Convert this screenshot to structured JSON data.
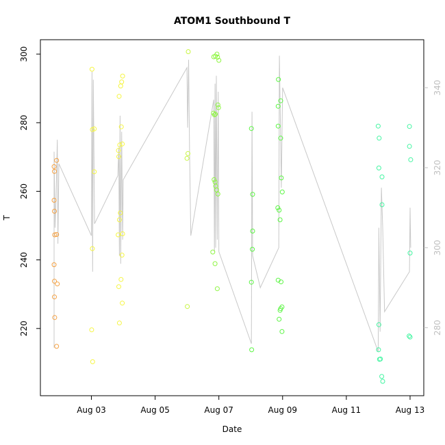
{
  "chart_data": {
    "type": "scatter",
    "title": "ATOM1 Southbound T",
    "xlabel": "Date",
    "ylabel": "T",
    "x_ticks": [
      "Aug 03",
      "Aug 05",
      "Aug 07",
      "Aug 09",
      "Aug 11",
      "Aug 13"
    ],
    "x_tick_days": [
      3,
      5,
      7,
      9,
      11,
      13
    ],
    "xlim_days": [
      1.4,
      13.43
    ],
    "ylim": [
      200.4,
      304.2
    ],
    "y_ticks": [
      220,
      240,
      260,
      280,
      300
    ],
    "y2lim": [
      263,
      352
    ],
    "y2_ticks": [
      280,
      300,
      320,
      340
    ],
    "grid": false,
    "legend": "none",
    "line_color": "#c8c8c8",
    "right_axis_color": "#bfbfbf",
    "points": [
      {
        "x": 1.83,
        "y": 267.2,
        "c": "#f5a142"
      },
      {
        "x": 1.84,
        "y": 265.8,
        "c": "#f5a142"
      },
      {
        "x": 1.83,
        "y": 257.4,
        "c": "#f5a142"
      },
      {
        "x": 1.84,
        "y": 254.2,
        "c": "#f5a142"
      },
      {
        "x": 1.85,
        "y": 247.3,
        "c": "#f5a142"
      },
      {
        "x": 1.83,
        "y": 238.6,
        "c": "#f5a142"
      },
      {
        "x": 1.84,
        "y": 233.8,
        "c": "#f5a142"
      },
      {
        "x": 1.84,
        "y": 229.2,
        "c": "#f5a142"
      },
      {
        "x": 1.85,
        "y": 223.2,
        "c": "#f5a142"
      },
      {
        "x": 1.91,
        "y": 269.0,
        "c": "#f5a142"
      },
      {
        "x": 1.91,
        "y": 247.4,
        "c": "#f5a142"
      },
      {
        "x": 1.93,
        "y": 233.0,
        "c": "#f5a142"
      },
      {
        "x": 1.91,
        "y": 214.8,
        "c": "#f5a142"
      },
      {
        "x": 3.02,
        "y": 295.6,
        "c": "#f5f542"
      },
      {
        "x": 3.03,
        "y": 278.0,
        "c": "#f5f542"
      },
      {
        "x": 3.09,
        "y": 278.2,
        "c": "#f5f542"
      },
      {
        "x": 3.09,
        "y": 265.7,
        "c": "#f5f542"
      },
      {
        "x": 3.03,
        "y": 243.3,
        "c": "#f5f542"
      },
      {
        "x": 3.01,
        "y": 219.6,
        "c": "#f5f542"
      },
      {
        "x": 3.04,
        "y": 210.3,
        "c": "#f5f542"
      },
      {
        "x": 3.87,
        "y": 287.7,
        "c": "#f5f542"
      },
      {
        "x": 3.92,
        "y": 290.7,
        "c": "#f5f542"
      },
      {
        "x": 3.95,
        "y": 291.9,
        "c": "#f5f542"
      },
      {
        "x": 3.98,
        "y": 293.6,
        "c": "#f5f542"
      },
      {
        "x": 3.94,
        "y": 278.8,
        "c": "#f5f542"
      },
      {
        "x": 3.85,
        "y": 271.9,
        "c": "#f5f542"
      },
      {
        "x": 3.89,
        "y": 273.5,
        "c": "#f5f542"
      },
      {
        "x": 3.97,
        "y": 273.8,
        "c": "#f5f542"
      },
      {
        "x": 3.86,
        "y": 270.1,
        "c": "#f5f542"
      },
      {
        "x": 3.88,
        "y": 251.7,
        "c": "#f5f542"
      },
      {
        "x": 3.91,
        "y": 253.7,
        "c": "#f5f542"
      },
      {
        "x": 3.84,
        "y": 247.3,
        "c": "#f5f542"
      },
      {
        "x": 3.98,
        "y": 247.6,
        "c": "#f5f542"
      },
      {
        "x": 3.96,
        "y": 241.4,
        "c": "#f5f542"
      },
      {
        "x": 3.93,
        "y": 234.3,
        "c": "#f5f542"
      },
      {
        "x": 3.86,
        "y": 232.2,
        "c": "#f5f542"
      },
      {
        "x": 3.97,
        "y": 227.4,
        "c": "#f5f542"
      },
      {
        "x": 3.88,
        "y": 221.6,
        "c": "#f5f542"
      },
      {
        "x": 6.04,
        "y": 300.7,
        "c": "#c8f542"
      },
      {
        "x": 6.03,
        "y": 271.0,
        "c": "#c8f542"
      },
      {
        "x": 6.0,
        "y": 269.6,
        "c": "#c8f542"
      },
      {
        "x": 6.01,
        "y": 226.4,
        "c": "#c8f542"
      },
      {
        "x": 6.84,
        "y": 299.2,
        "c": "#8ef542"
      },
      {
        "x": 6.89,
        "y": 299.4,
        "c": "#8ef542"
      },
      {
        "x": 6.94,
        "y": 300.0,
        "c": "#8ef542"
      },
      {
        "x": 6.96,
        "y": 299.1,
        "c": "#8ef542"
      },
      {
        "x": 7.0,
        "y": 298.2,
        "c": "#8ef542"
      },
      {
        "x": 6.83,
        "y": 282.8,
        "c": "#8ef542"
      },
      {
        "x": 6.86,
        "y": 282.3,
        "c": "#8ef542"
      },
      {
        "x": 6.89,
        "y": 282.5,
        "c": "#8ef542"
      },
      {
        "x": 6.97,
        "y": 285.2,
        "c": "#8ef542"
      },
      {
        "x": 6.99,
        "y": 284.4,
        "c": "#8ef542"
      },
      {
        "x": 6.85,
        "y": 263.4,
        "c": "#8ef542"
      },
      {
        "x": 6.88,
        "y": 262.7,
        "c": "#8ef542"
      },
      {
        "x": 6.9,
        "y": 261.5,
        "c": "#8ef542"
      },
      {
        "x": 6.93,
        "y": 260.4,
        "c": "#8ef542"
      },
      {
        "x": 6.97,
        "y": 259.2,
        "c": "#8ef542"
      },
      {
        "x": 6.81,
        "y": 242.3,
        "c": "#8ef542"
      },
      {
        "x": 6.88,
        "y": 238.9,
        "c": "#8ef542"
      },
      {
        "x": 6.95,
        "y": 231.6,
        "c": "#8ef542"
      },
      {
        "x": 8.02,
        "y": 278.3,
        "c": "#5af542"
      },
      {
        "x": 8.06,
        "y": 259.1,
        "c": "#5af542"
      },
      {
        "x": 8.06,
        "y": 248.4,
        "c": "#5af542"
      },
      {
        "x": 8.05,
        "y": 243.1,
        "c": "#5af542"
      },
      {
        "x": 8.02,
        "y": 233.5,
        "c": "#5af542"
      },
      {
        "x": 8.03,
        "y": 213.8,
        "c": "#5af542"
      },
      {
        "x": 8.87,
        "y": 292.6,
        "c": "#5af542"
      },
      {
        "x": 8.94,
        "y": 286.4,
        "c": "#5af542"
      },
      {
        "x": 8.86,
        "y": 284.8,
        "c": "#5af542"
      },
      {
        "x": 8.86,
        "y": 279.0,
        "c": "#5af542"
      },
      {
        "x": 8.94,
        "y": 275.5,
        "c": "#5af542"
      },
      {
        "x": 8.96,
        "y": 263.9,
        "c": "#5af542"
      },
      {
        "x": 8.99,
        "y": 259.8,
        "c": "#5af542"
      },
      {
        "x": 8.85,
        "y": 255.2,
        "c": "#5af542"
      },
      {
        "x": 8.89,
        "y": 254.5,
        "c": "#5af542"
      },
      {
        "x": 8.92,
        "y": 251.7,
        "c": "#5af542"
      },
      {
        "x": 8.86,
        "y": 234.1,
        "c": "#5af542"
      },
      {
        "x": 8.95,
        "y": 233.6,
        "c": "#5af542"
      },
      {
        "x": 8.98,
        "y": 226.3,
        "c": "#5af542"
      },
      {
        "x": 8.92,
        "y": 225.3,
        "c": "#5af542"
      },
      {
        "x": 8.94,
        "y": 225.8,
        "c": "#5af542"
      },
      {
        "x": 8.89,
        "y": 222.7,
        "c": "#5af542"
      },
      {
        "x": 8.98,
        "y": 219.1,
        "c": "#5af542"
      },
      {
        "x": 12.0,
        "y": 279.0,
        "c": "#42f5a1"
      },
      {
        "x": 12.03,
        "y": 275.5,
        "c": "#42f5a1"
      },
      {
        "x": 12.02,
        "y": 266.8,
        "c": "#42f5a1"
      },
      {
        "x": 12.12,
        "y": 264.2,
        "c": "#42f5a1"
      },
      {
        "x": 12.12,
        "y": 256.1,
        "c": "#42f5a1"
      },
      {
        "x": 12.02,
        "y": 221.1,
        "c": "#42f5a1"
      },
      {
        "x": 12.01,
        "y": 213.8,
        "c": "#42f5a1"
      },
      {
        "x": 12.04,
        "y": 211.0,
        "c": "#42f5a1"
      },
      {
        "x": 12.07,
        "y": 211.1,
        "c": "#42f5a1"
      },
      {
        "x": 12.11,
        "y": 206.0,
        "c": "#42f5a1"
      },
      {
        "x": 12.14,
        "y": 204.6,
        "c": "#42f5a1"
      },
      {
        "x": 12.98,
        "y": 278.9,
        "c": "#42f5a1"
      },
      {
        "x": 12.98,
        "y": 273.1,
        "c": "#42f5a1"
      },
      {
        "x": 13.02,
        "y": 269.2,
        "c": "#42f5a1"
      },
      {
        "x": 13.0,
        "y": 242.0,
        "c": "#42f5a1"
      },
      {
        "x": 12.97,
        "y": 217.8,
        "c": "#42f5a1"
      },
      {
        "x": 13.0,
        "y": 217.5,
        "c": "#42f5a1"
      }
    ],
    "secondary_line": [
      [
        1.83,
        275
      ],
      [
        1.83,
        324
      ],
      [
        1.86,
        305
      ],
      [
        1.89,
        312
      ],
      [
        1.93,
        327
      ],
      [
        1.95,
        301
      ],
      [
        1.98,
        321
      ],
      [
        3.0,
        303
      ],
      [
        3.02,
        344
      ],
      [
        3.04,
        294
      ],
      [
        3.06,
        342
      ],
      [
        3.1,
        306
      ],
      [
        3.83,
        318
      ],
      [
        3.86,
        325
      ],
      [
        3.88,
        298
      ],
      [
        3.9,
        333
      ],
      [
        3.92,
        296
      ],
      [
        3.95,
        329
      ],
      [
        3.98,
        302
      ],
      [
        4.0,
        317
      ],
      [
        6.0,
        345
      ],
      [
        6.02,
        330
      ],
      [
        6.05,
        347
      ],
      [
        6.08,
        324
      ],
      [
        6.12,
        303
      ],
      [
        6.84,
        337
      ],
      [
        6.86,
        299
      ],
      [
        6.88,
        341
      ],
      [
        6.9,
        300
      ],
      [
        6.92,
        343
      ],
      [
        6.95,
        302
      ],
      [
        6.98,
        339
      ],
      [
        7.0,
        299
      ],
      [
        8.02,
        276
      ],
      [
        8.04,
        334
      ],
      [
        8.06,
        298
      ],
      [
        8.3,
        290
      ],
      [
        8.88,
        300
      ],
      [
        8.9,
        348
      ],
      [
        8.93,
        332
      ],
      [
        8.96,
        315
      ],
      [
        9.0,
        340
      ],
      [
        12.0,
        274
      ],
      [
        12.02,
        305
      ],
      [
        12.06,
        279
      ],
      [
        12.1,
        315
      ],
      [
        12.14,
        305
      ],
      [
        12.2,
        284
      ],
      [
        12.98,
        294
      ],
      [
        13.0,
        310
      ],
      [
        13.02,
        300
      ]
    ]
  }
}
